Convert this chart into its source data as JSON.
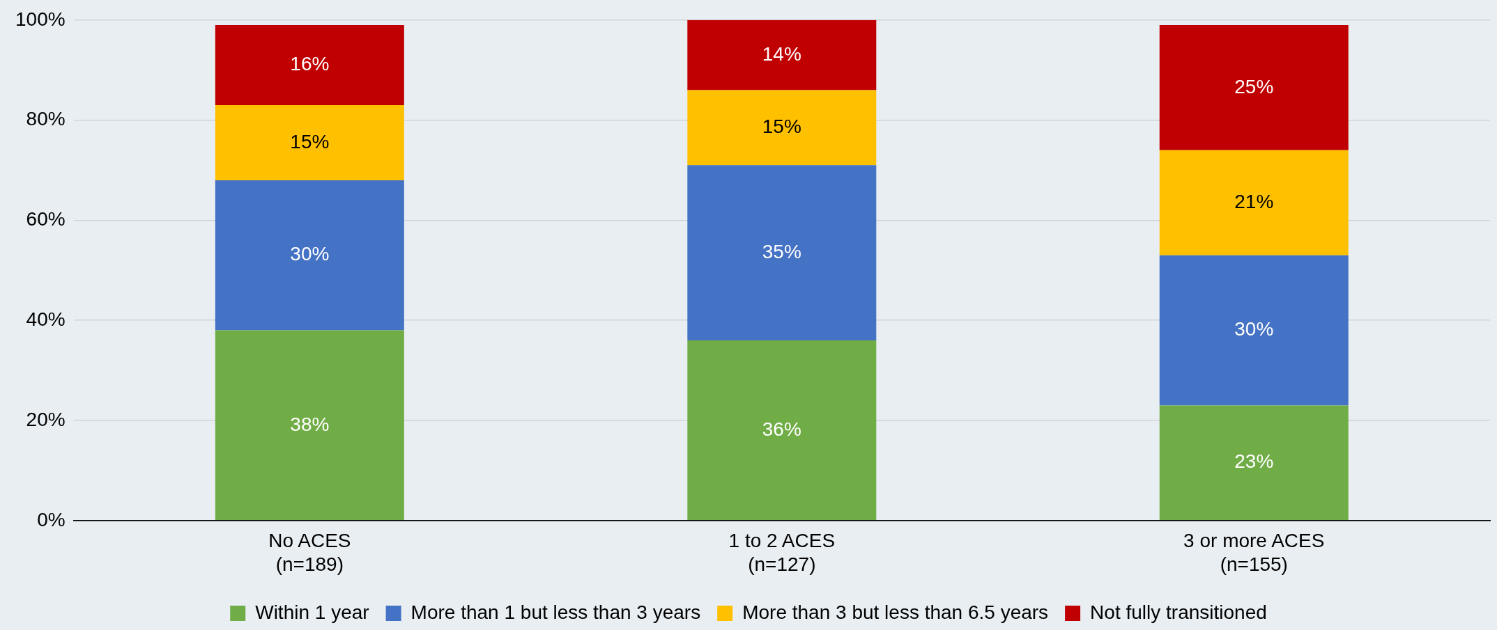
{
  "chart_data": {
    "type": "bar",
    "stacked": true,
    "categories": [
      "No ACES\n(n=189)",
      "1 to 2 ACES\n(n=127)",
      "3 or more ACES\n(n=155)"
    ],
    "series": [
      {
        "name": "Within 1 year",
        "color": "#70ad47",
        "values": [
          38,
          36,
          23
        ],
        "value_labels": [
          "38%",
          "36%",
          "23%"
        ]
      },
      {
        "name": "More than 1 but less than 3 years",
        "color": "#4472c4",
        "values": [
          30,
          35,
          30
        ],
        "value_labels": [
          "30%",
          "35%",
          "30%"
        ]
      },
      {
        "name": "More than 3 but less than 6.5 years",
        "color": "#ffc000",
        "values": [
          15,
          15,
          21
        ],
        "value_labels": [
          "15%",
          "15%",
          "21%"
        ]
      },
      {
        "name": "Not fully transitioned",
        "color": "#c00000",
        "values": [
          16,
          14,
          25
        ],
        "value_labels": [
          "16%",
          "14%",
          "25%"
        ]
      }
    ],
    "ylim": [
      0,
      100
    ],
    "yticks": [
      {
        "value": 0,
        "label": "0%"
      },
      {
        "value": 20,
        "label": "20%"
      },
      {
        "value": 40,
        "label": "40%"
      },
      {
        "value": 60,
        "label": "60%"
      },
      {
        "value": 80,
        "label": "80%"
      },
      {
        "value": 100,
        "label": "100%"
      }
    ],
    "grid": "y",
    "legend": "bottom"
  }
}
